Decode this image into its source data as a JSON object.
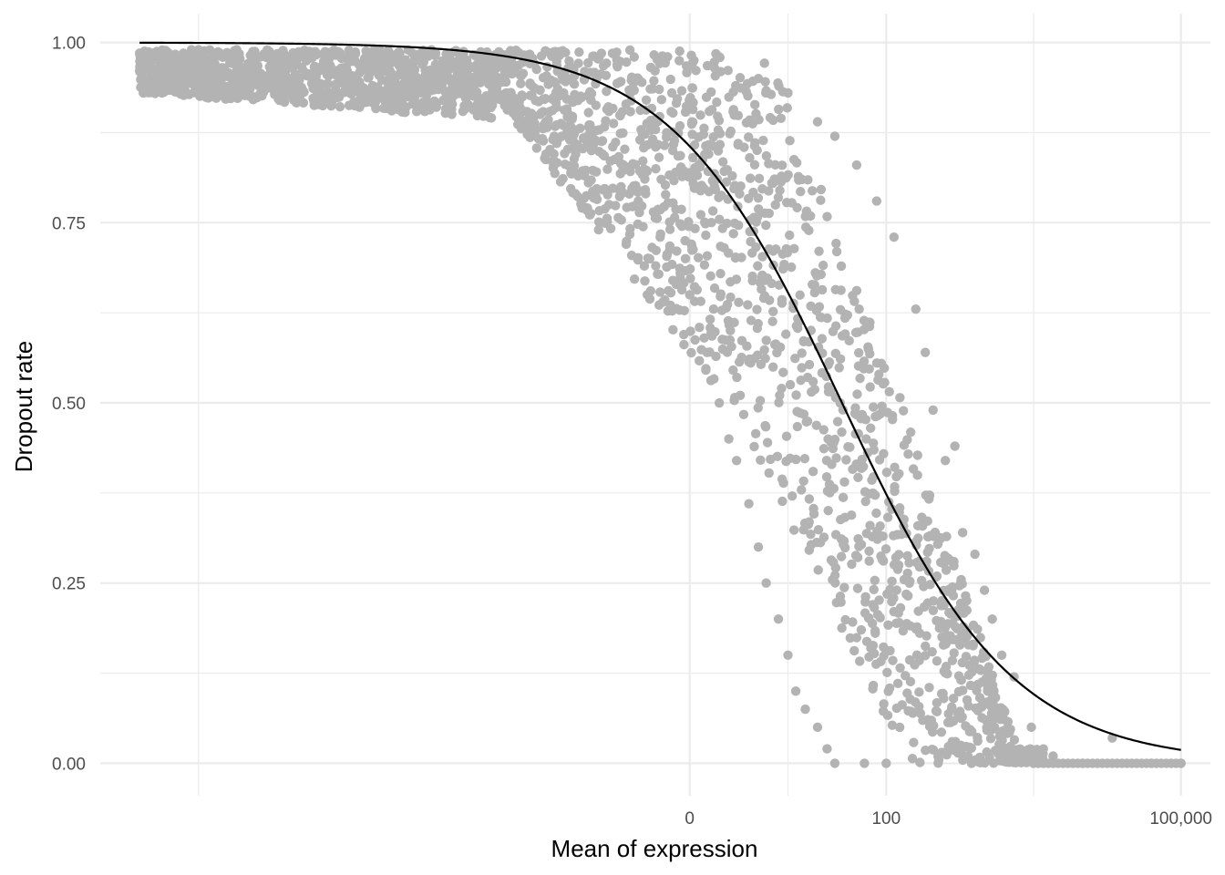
{
  "chart_data": {
    "type": "scatter",
    "title": "",
    "xlabel": "Mean of expression",
    "ylabel": "Dropout rate",
    "x_scale": "log10",
    "xlim": [
      -6,
      5.3
    ],
    "ylim": [
      -0.045,
      1.04
    ],
    "x_ticks": [
      {
        "value": 0,
        "label": "0"
      },
      {
        "value": 100,
        "label": "100"
      },
      {
        "value": 100000,
        "label": "100,000"
      }
    ],
    "y_ticks": [
      {
        "value": 0.0,
        "label": "0.00"
      },
      {
        "value": 0.25,
        "label": "0.25"
      },
      {
        "value": 0.5,
        "label": "0.50"
      },
      {
        "value": 0.75,
        "label": "0.75"
      },
      {
        "value": 1.0,
        "label": "1.00"
      }
    ],
    "grid": true,
    "legend": "none",
    "point_color": "#b3b3b3",
    "line_color": "#000000",
    "series": [
      {
        "type": "scatter",
        "description_note": "",
        "points": [
          [
            1e-05,
            0.99
          ],
          [
            2e-05,
            0.985
          ],
          [
            5e-05,
            0.98
          ],
          [
            0.0001,
            0.975
          ],
          [
            0.0003,
            0.965
          ],
          [
            0.001,
            0.95
          ],
          [
            0.002,
            0.915
          ],
          [
            0.003,
            0.94
          ],
          [
            0.005,
            0.93
          ],
          [
            0.01,
            0.92
          ],
          [
            0.02,
            0.89
          ],
          [
            0.05,
            0.87
          ],
          [
            0.1,
            0.85
          ],
          [
            0.2,
            0.8
          ],
          [
            0.3,
            0.78
          ],
          [
            0.5,
            0.73
          ],
          [
            0.8,
            0.68
          ],
          [
            1.0,
            0.65
          ],
          [
            1.5,
            0.57
          ],
          [
            2.0,
            0.5
          ],
          [
            2.5,
            0.45
          ],
          [
            3.0,
            0.42
          ],
          [
            4.0,
            0.36
          ],
          [
            5.0,
            0.3
          ],
          [
            6.0,
            0.25
          ],
          [
            8.0,
            0.2
          ],
          [
            10.0,
            0.15
          ],
          [
            12.0,
            0.1
          ],
          [
            15.0,
            0.075
          ],
          [
            20.0,
            0.05
          ],
          [
            25.0,
            0.02
          ],
          [
            30.0,
            0.0
          ],
          [
            60.0,
            0.0
          ],
          [
            100.0,
            0.0
          ],
          [
            2.0,
            0.98
          ],
          [
            5.0,
            0.95
          ],
          [
            10.0,
            0.93
          ],
          [
            20.0,
            0.89
          ],
          [
            30.0,
            0.87
          ],
          [
            50.0,
            0.83
          ],
          [
            80.0,
            0.78
          ],
          [
            120.0,
            0.73
          ],
          [
            200.0,
            0.63
          ],
          [
            250.0,
            0.57
          ],
          [
            300.0,
            0.49
          ],
          [
            400.0,
            0.42
          ],
          [
            500.0,
            0.44
          ],
          [
            600.0,
            0.32
          ],
          [
            800.0,
            0.29
          ],
          [
            1000.0,
            0.24
          ],
          [
            1200.0,
            0.2
          ],
          [
            1500.0,
            0.15
          ],
          [
            2000.0,
            0.12
          ],
          [
            3000.0,
            0.05
          ],
          [
            5000.0,
            0.01
          ],
          [
            10000.0,
            0.0
          ],
          [
            20000.0,
            0.035
          ],
          [
            50000.0,
            0.0
          ],
          [
            100000.0,
            0.0
          ]
        ]
      },
      {
        "type": "line",
        "description_note": "",
        "points": [
          [
            1e-05,
            1.0
          ],
          [
            0.001,
            0.999
          ],
          [
            0.1,
            0.995
          ],
          [
            1.0,
            0.98
          ],
          [
            3.0,
            0.955
          ],
          [
            10.0,
            0.88
          ],
          [
            20.0,
            0.8
          ],
          [
            40.0,
            0.66
          ],
          [
            70.0,
            0.52
          ],
          [
            100.0,
            0.43
          ],
          [
            200.0,
            0.27
          ],
          [
            400.0,
            0.16
          ],
          [
            1000.0,
            0.07
          ],
          [
            3000.0,
            0.025
          ],
          [
            10000.0,
            0.01
          ],
          [
            100000.0,
            0.002
          ]
        ]
      }
    ]
  }
}
